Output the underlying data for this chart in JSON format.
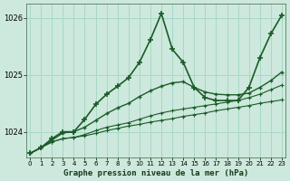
{
  "xlabel": "Graphe pression niveau de la mer (hPa)",
  "bg_color": "#cde8dc",
  "grid_color": "#a8d8c8",
  "line_color": "#1a5c28",
  "ylim": [
    1023.55,
    1026.25
  ],
  "yticks": [
    1024,
    1025,
    1026
  ],
  "xlim": [
    -0.3,
    23.3
  ],
  "xticks": [
    0,
    1,
    2,
    3,
    4,
    5,
    6,
    7,
    8,
    9,
    10,
    11,
    12,
    13,
    14,
    15,
    16,
    17,
    18,
    19,
    20,
    21,
    22,
    23
  ],
  "series": [
    {
      "y": [
        1023.62,
        1023.72,
        1023.82,
        1023.88,
        1023.9,
        1023.93,
        1023.97,
        1024.02,
        1024.06,
        1024.1,
        1024.13,
        1024.17,
        1024.2,
        1024.23,
        1024.27,
        1024.3,
        1024.33,
        1024.37,
        1024.4,
        1024.43,
        1024.46,
        1024.5,
        1024.53,
        1024.56
      ],
      "lw": 0.8,
      "ls": "-",
      "marker": "+",
      "ms": 3.0,
      "mew": 0.8
    },
    {
      "y": [
        1023.62,
        1023.72,
        1023.82,
        1023.88,
        1023.9,
        1023.95,
        1024.02,
        1024.08,
        1024.12,
        1024.16,
        1024.22,
        1024.28,
        1024.33,
        1024.37,
        1024.4,
        1024.43,
        1024.46,
        1024.49,
        1024.52,
        1024.55,
        1024.6,
        1024.66,
        1024.74,
        1024.82
      ],
      "lw": 0.8,
      "ls": "-",
      "marker": "+",
      "ms": 3.0,
      "mew": 0.8
    },
    {
      "y": [
        1023.62,
        1023.72,
        1023.85,
        1023.98,
        1024.0,
        1024.08,
        1024.2,
        1024.32,
        1024.42,
        1024.5,
        1024.62,
        1024.72,
        1024.8,
        1024.86,
        1024.88,
        1024.78,
        1024.7,
        1024.66,
        1024.65,
        1024.65,
        1024.68,
        1024.78,
        1024.9,
        1025.05
      ],
      "lw": 1.0,
      "ls": "-",
      "marker": "+",
      "ms": 3.5,
      "mew": 1.0
    },
    {
      "y": [
        1023.62,
        1023.72,
        1023.88,
        1024.0,
        1024.0,
        1024.22,
        1024.48,
        1024.66,
        1024.8,
        1024.95,
        1025.22,
        1025.62,
        1026.08,
        1025.45,
        1025.22,
        1024.78,
        1024.6,
        1024.55,
        1024.55,
        1024.55,
        1024.78,
        1025.3,
        1025.72,
        1026.05
      ],
      "lw": 1.2,
      "ls": "-",
      "marker": "+",
      "ms": 4.0,
      "mew": 1.2
    }
  ]
}
